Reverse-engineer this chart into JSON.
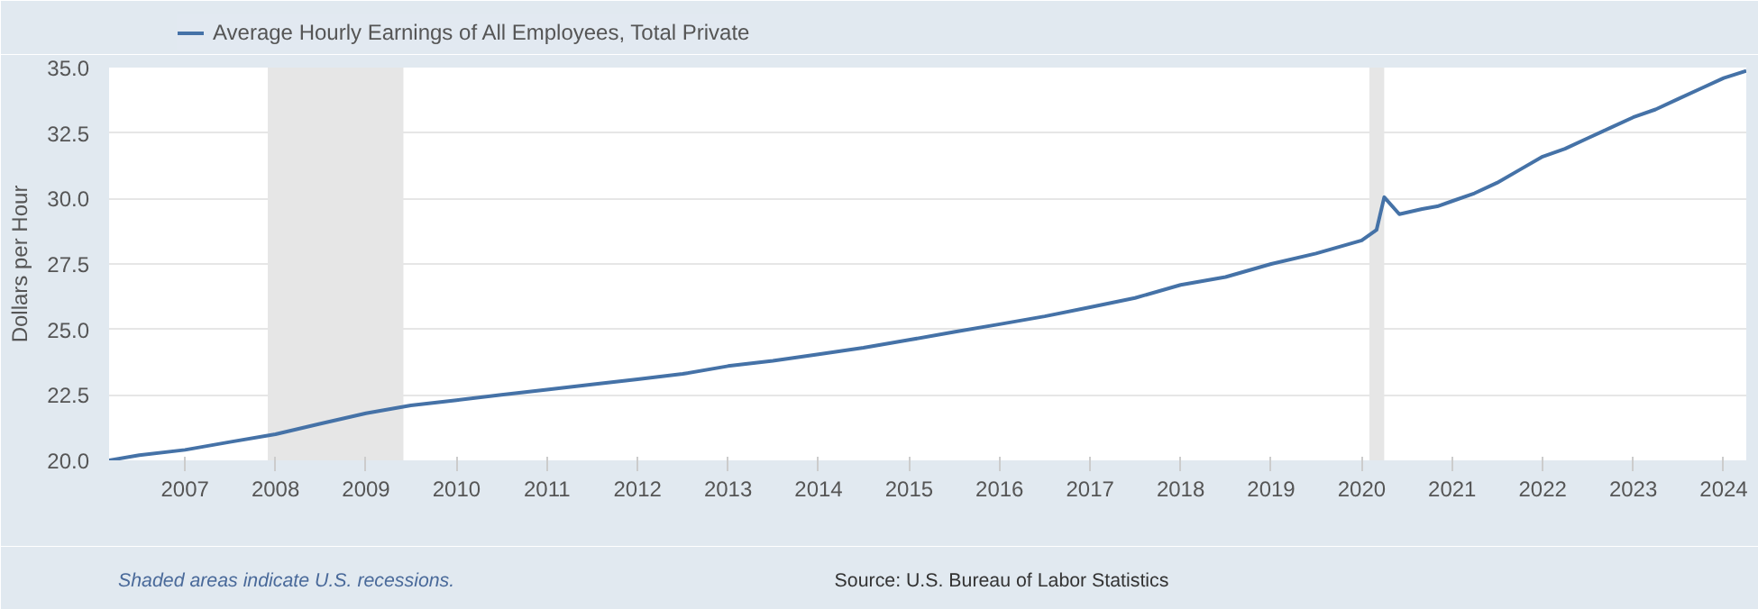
{
  "chart_data": {
    "type": "line",
    "ylabel": "Dollars per Hour",
    "legend": "top left",
    "grid": "y",
    "x": [
      "2006-03",
      "2006-07",
      "2007-01",
      "2007-07",
      "2008-01",
      "2008-07",
      "2009-01",
      "2009-07",
      "2010-01",
      "2010-07",
      "2011-01",
      "2011-07",
      "2012-01",
      "2012-07",
      "2013-01",
      "2013-07",
      "2014-01",
      "2014-07",
      "2015-01",
      "2015-07",
      "2016-01",
      "2016-07",
      "2017-01",
      "2017-07",
      "2018-01",
      "2018-07",
      "2019-01",
      "2019-07",
      "2020-01",
      "2020-03",
      "2020-04",
      "2020-06",
      "2020-09",
      "2020-11",
      "2021-01",
      "2021-04",
      "2021-07",
      "2021-10",
      "2022-01",
      "2022-04",
      "2022-07",
      "2022-10",
      "2023-01",
      "2023-04",
      "2023-07",
      "2023-10",
      "2024-01",
      "2024-04"
    ],
    "series": [
      {
        "name": "Average Hourly Earnings of All Employees, Total Private",
        "color": "#4572a7",
        "values": [
          20.0,
          20.2,
          20.4,
          20.7,
          21.0,
          21.4,
          21.8,
          22.1,
          22.3,
          22.5,
          22.7,
          22.9,
          23.1,
          23.3,
          23.6,
          23.8,
          24.05,
          24.3,
          24.6,
          24.9,
          25.2,
          25.5,
          25.85,
          26.2,
          26.7,
          27.0,
          27.5,
          27.9,
          28.4,
          28.8,
          30.05,
          29.4,
          29.6,
          29.7,
          29.9,
          30.2,
          30.6,
          31.1,
          31.6,
          31.9,
          32.3,
          32.7,
          33.1,
          33.4,
          33.8,
          34.2,
          34.6,
          34.87
        ]
      }
    ],
    "xlim": [
      "2006-03",
      "2024-04"
    ],
    "xticks": [
      "2007",
      "2008",
      "2009",
      "2010",
      "2011",
      "2012",
      "2013",
      "2014",
      "2015",
      "2016",
      "2017",
      "2018",
      "2019",
      "2020",
      "2021",
      "2022",
      "2023",
      "2024"
    ],
    "ylim": [
      20.0,
      35.0
    ],
    "yticks": [
      {
        "value": 20,
        "label": "20.0"
      },
      {
        "value": 22.5,
        "label": "22.5"
      },
      {
        "value": 25,
        "label": "25.0"
      },
      {
        "value": 27.5,
        "label": "27.5"
      },
      {
        "value": 30,
        "label": "30.0"
      },
      {
        "value": 32.5,
        "label": "32.5"
      },
      {
        "value": 35,
        "label": "35.0"
      }
    ],
    "bands": [
      {
        "axis": "x",
        "from": "2007-12",
        "to": "2009-06",
        "color": "#e6e6e6"
      },
      {
        "axis": "x",
        "from": "2020-02",
        "to": "2020-04",
        "color": "#e6e6e6"
      }
    ],
    "annotations": [
      "Shaded areas indicate U.S. recessions.",
      "Source: U.S. Bureau of Labor Statistics"
    ]
  }
}
